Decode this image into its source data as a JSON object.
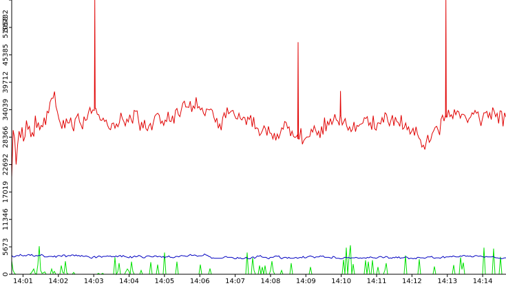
{
  "chart_data": {
    "type": "line",
    "title": "",
    "xlabel": "",
    "ylabel": "",
    "x_tick_labels": [
      "14:01",
      "14:02",
      "14:03",
      "14:04",
      "14:05",
      "14:06",
      "14:07",
      "14:08",
      "14:09",
      "14:10",
      "14:11",
      "14:12",
      "14:13",
      "14:14"
    ],
    "y_tick_labels": [
      "0",
      "5673",
      "11346",
      "17019",
      "22692",
      "28366",
      "34039",
      "39712",
      "45385",
      "51058",
      "56732"
    ],
    "xlim_minutes": [
      0.68,
      14.66
    ],
    "ylim": [
      0,
      56732
    ],
    "grid": false,
    "legend": "none",
    "series": [
      {
        "color": "#e00000",
        "values": [
          20000,
          29800,
          28100,
          22700,
          26800,
          29600,
          28200,
          30400,
          27500,
          28500,
          31800,
          30000,
          30600,
          28400,
          29300,
          28500,
          32800,
          30300,
          31400,
          29900,
          30800,
          30500,
          32400,
          30900,
          33700,
          33400,
          35600,
          36400,
          36400,
          37800,
          34700,
          33600,
          32100,
          31200,
          30100,
          31900,
          30200,
          32200,
          31300,
          31300,
          32400,
          30500,
          29600,
          32100,
          32600,
          33200,
          31500,
          30900,
          30000,
          32600,
          31800,
          32000,
          33500,
          34500,
          33300,
          34000,
          33900,
          34300,
          33100,
          33000,
          31900,
          31800,
          32300,
          31600,
          31900,
          30800,
          30100,
          29900,
          31200,
          31300,
          30200,
          31100,
          30500,
          31400,
          33400,
          32200,
          31600,
          30700,
          32100,
          31500,
          33000,
          32000,
          31200,
          33900,
          33700,
          33800,
          31700,
          29700,
          31500,
          30200,
          31900,
          30100,
          29700,
          30700,
          31200,
          29800,
          31400,
          32700,
          33100,
          33300,
          32900,
          31200,
          31700,
          30800,
          31900,
          31600,
          33600,
          31700,
          31600,
          32800,
          31200,
          33900,
          34300,
          33000,
          32600,
          34100,
          35400,
          35800,
          34600,
          34600,
          34500,
          35800,
          33600,
          34800,
          34300,
          36600,
          34400,
          34700,
          34000,
          34400,
          33300,
          32800,
          34200,
          34100,
          34000,
          34200,
          33900,
          32500,
          31500,
          32300,
          30200,
          31100,
          29800,
          32400,
          33400,
          32300,
          34500,
          33200,
          33500,
          33800,
          33900,
          32900,
          32200,
          32100,
          33300,
          32200,
          31900,
          32500,
          32400,
          30900,
          32500,
          32000,
          32900,
          30500,
          32500,
          30100,
          30300,
          30100,
          28700,
          29100,
          29800,
          30700,
          30100,
          28700,
          30600,
          29200,
          29100,
          28000,
          29200,
          27700,
          29000,
          28100,
          29100,
          30300,
          30000,
          31600,
          31400,
          30200,
          30500,
          28600,
          29600,
          28500,
          28300,
          28500,
          29000,
          28000,
          30200,
          26900,
          27700,
          28100,
          28400,
          28400,
          28500,
          30000,
          29400,
          30700,
          29800,
          28800,
          29600,
          28200,
          30600,
          28900,
          32400,
          29600,
          31600,
          30900,
          32200,
          31000,
          31800,
          33100,
          31900,
          31700,
          30800,
          32800,
          30900,
          31500,
          32200,
          30700,
          29800,
          30500,
          29500,
          30000,
          31500,
          29500,
          30800,
          30600,
          31000,
          31100,
          31300,
          32400,
          32200,
          32600,
          30800,
          31400,
          29900,
          32800,
          30100,
          29800,
          31300,
          31300,
          31100,
          32400,
          31400,
          33400,
          33100,
          31600,
          30700,
          31800,
          32900,
          30700,
          32500,
          31600,
          31400,
          30600,
          32900,
          30000,
          30300,
          31300,
          29900,
          30500,
          29000,
          29500,
          30200,
          28700,
          30500,
          29000,
          28200,
          27800,
          26300,
          26700,
          25800,
          27500,
          28800,
          27300,
          27800,
          29100,
          29700,
          30400,
          30600,
          29800,
          28800,
          32100,
          32900,
          31700,
          32900,
          32500,
          34000,
          32600,
          33000,
          32200,
          34100,
          33000,
          33800,
          33600,
          32300,
          33100,
          33100,
          32900,
          32200,
          31400,
          32200,
          32500,
          33400,
          33100,
          33900,
          33300,
          33600,
          32100,
          30700,
          32100,
          33400,
          33400,
          33700,
          32400,
          33400,
          32000,
          34500,
          33700,
          32600,
          33300,
          31200,
          33800,
          33700,
          30600,
          33400,
          32500
        ],
        "spikes": [
          {
            "x_minute": 3.03,
            "value": 56732
          },
          {
            "x_minute": 8.78,
            "value": 48000
          },
          {
            "x_minute": 9.98,
            "value": 37900
          },
          {
            "x_minute": 12.96,
            "value": 56732
          }
        ]
      },
      {
        "color": "#0000c0",
        "values": [
          3900,
          3600,
          3600,
          3800,
          3900,
          3800,
          4100,
          3900,
          3800,
          3900,
          3800,
          4000,
          4100,
          3900,
          4100,
          3800,
          3700,
          3900,
          3800,
          3900,
          3900,
          4100,
          3900,
          3600,
          3600,
          3600,
          3700,
          3700,
          3700,
          3600,
          3800,
          3500,
          3800,
          3900,
          3800,
          3700,
          4000,
          4000,
          3600,
          3800,
          3900,
          3800,
          4000,
          4000,
          3800,
          4000,
          3800,
          3900,
          3700,
          3900,
          3700,
          3700,
          3800,
          3700,
          3600,
          3400,
          3300,
          3600,
          3700,
          3400,
          3600,
          3800,
          3700,
          3500,
          3700,
          3700,
          3700,
          3800,
          3700,
          3800,
          3600,
          3700,
          3600,
          3800,
          3600,
          3800,
          3900,
          3600,
          3900,
          3700,
          3600,
          3500,
          3400,
          3700,
          3400,
          3600,
          3800,
          3600,
          3700,
          3900,
          3800,
          3600,
          3400,
          3400,
          3700,
          3800,
          3800,
          3700,
          3600,
          3600,
          3800,
          3800,
          3600,
          3700,
          3700,
          3500,
          3700,
          3400,
          3600,
          3600,
          3800,
          3500,
          3500,
          3400,
          3500,
          3700,
          3700,
          3600,
          3800,
          3900,
          3800,
          3800,
          3700,
          3700,
          3900,
          4100,
          3900,
          3900,
          4000,
          3900,
          3700,
          3800,
          3800,
          3800,
          3900,
          4200,
          4000,
          3900,
          3700,
          3600,
          3300,
          3400,
          3300,
          3300,
          3300,
          3300,
          3300,
          3300,
          3400,
          3600,
          3700,
          3500,
          3500,
          3500,
          3500,
          3400,
          3200,
          3200,
          3500,
          3300,
          3400,
          3200,
          3200,
          3300,
          3500,
          3300,
          3200,
          3200,
          3500,
          3600,
          3300,
          3500,
          3800,
          3700,
          3900,
          3600,
          3500,
          3500,
          3500,
          3300,
          3200,
          3500,
          3500,
          3500,
          3700,
          3800,
          3700,
          3800,
          3400,
          3200,
          3400,
          3500,
          3500,
          3300,
          3500,
          3300,
          3300,
          3300,
          3400,
          3500,
          3300,
          3400,
          3500,
          3400,
          3700,
          3400,
          3400,
          3600,
          3700,
          3800,
          3700,
          3600,
          3400,
          3600,
          3600,
          3600,
          3800,
          3700,
          3800,
          3500,
          3500,
          3500,
          3500,
          3400,
          3300,
          3700,
          3600,
          3300,
          3300,
          3300,
          3200,
          3200,
          3300,
          3500,
          3500,
          3400,
          3500,
          3300,
          3400,
          3400,
          3400,
          3500,
          3400,
          3300,
          3400,
          3300,
          3400,
          3400,
          3300,
          3500,
          3400,
          3600,
          3500,
          3400,
          3400,
          3300,
          3400,
          3600,
          3700,
          3600,
          3400,
          3500,
          3700,
          3600,
          3300,
          3400,
          3300,
          3500,
          3400,
          3600,
          3400,
          3600,
          3300,
          3400,
          3400,
          3500,
          3600,
          3500,
          3200,
          3300,
          3300,
          3200,
          3300,
          3200,
          3500,
          3500,
          3400,
          3400,
          3400,
          3300,
          3400,
          3600,
          3600,
          3600,
          3700,
          3400,
          3300,
          3400,
          3400,
          3400,
          3300,
          3500,
          3700,
          3400,
          3600,
          3600,
          3600,
          3700,
          3600,
          3800,
          3700,
          3600,
          3600,
          3600,
          3800,
          3700,
          3900,
          3900,
          3700,
          3800,
          3700,
          3800,
          3600,
          3600,
          3800,
          3900,
          3800,
          3700,
          3800,
          3700,
          3600,
          3500,
          3700,
          3600,
          3600,
          3600,
          3600,
          3700,
          3500,
          3400,
          3400,
          3300,
          3300,
          3200,
          3300,
          3400,
          3400
        ]
      },
      {
        "color": "#00e000",
        "values": [
          2800,
          800,
          200,
          0,
          0,
          0,
          0,
          0,
          0,
          0,
          0,
          0,
          0,
          0,
          200,
          600,
          1100,
          200,
          0,
          2000,
          5800,
          800,
          200,
          300,
          500,
          0,
          0,
          0,
          0,
          1100,
          200,
          600,
          0,
          0,
          0,
          0,
          1800,
          400,
          200,
          2700,
          300,
          0,
          0,
          0,
          0,
          400,
          0,
          0,
          0,
          0,
          0,
          0,
          0,
          0,
          0,
          0,
          0,
          0,
          0,
          0,
          0,
          0,
          0,
          200,
          0,
          0,
          200,
          0,
          0,
          0,
          0,
          0,
          0,
          0,
          0,
          3500,
          0,
          500,
          2300,
          0,
          0,
          0,
          0,
          600,
          1100,
          700,
          0,
          2600,
          600,
          0,
          0,
          0,
          0,
          0,
          800,
          0,
          0,
          0,
          0,
          0,
          0,
          2500,
          0,
          0,
          0,
          0,
          2000,
          0,
          0,
          0,
          0,
          4500,
          0,
          0,
          0,
          0,
          0,
          0,
          0,
          0,
          2600,
          0,
          0,
          0,
          0,
          0,
          0,
          0,
          0,
          0,
          0,
          0,
          0,
          0,
          0,
          0,
          0,
          2000,
          0,
          0,
          0,
          0,
          0,
          0,
          1200,
          0,
          0,
          0,
          0,
          0,
          0,
          0,
          0,
          0,
          0,
          0,
          0,
          0,
          0,
          0,
          0,
          0,
          0,
          0,
          0,
          0,
          0,
          0,
          0,
          0,
          0,
          4500,
          0,
          0,
          0,
          3400,
          800,
          0,
          0,
          0,
          1800,
          0,
          1500,
          0,
          1800,
          0,
          0,
          0,
          800,
          2700,
          600,
          0,
          0,
          0,
          0,
          0,
          800,
          0,
          0,
          0,
          0,
          0,
          0,
          2300,
          0,
          0,
          0,
          0,
          0,
          0,
          0,
          0,
          0,
          0,
          0,
          0,
          0,
          1500,
          0,
          0,
          0,
          0,
          0,
          0,
          0,
          0,
          0,
          0,
          0,
          0,
          0,
          0,
          0,
          0,
          0,
          0,
          0,
          0,
          0,
          0,
          0,
          3000,
          0,
          5500,
          0,
          3500,
          6000,
          0,
          2100,
          0,
          0,
          0,
          0,
          0,
          0,
          0,
          0,
          2900,
          0,
          2600,
          0,
          0,
          2900,
          0,
          0,
          0,
          1500,
          0,
          0,
          0,
          0,
          800,
          2300,
          0,
          0,
          0,
          0,
          0,
          0,
          0,
          0,
          0,
          0,
          0,
          0,
          0,
          3900,
          0,
          0,
          0,
          0,
          0,
          0,
          0,
          0,
          0,
          3100,
          0,
          0,
          0,
          0,
          0,
          0,
          0,
          0,
          0,
          0,
          1600,
          0,
          0,
          0,
          0,
          0,
          0,
          0,
          0,
          0,
          0,
          0,
          0,
          0,
          1900,
          0,
          0,
          0,
          0,
          3500,
          1000,
          2400,
          0,
          0,
          0,
          0,
          0,
          0,
          0,
          0,
          0,
          0,
          0,
          0,
          0,
          0,
          5500,
          0,
          0,
          0,
          0,
          0,
          0,
          5300,
          0,
          0,
          0,
          0,
          3600,
          0,
          0,
          0,
          0
        ]
      }
    ]
  }
}
